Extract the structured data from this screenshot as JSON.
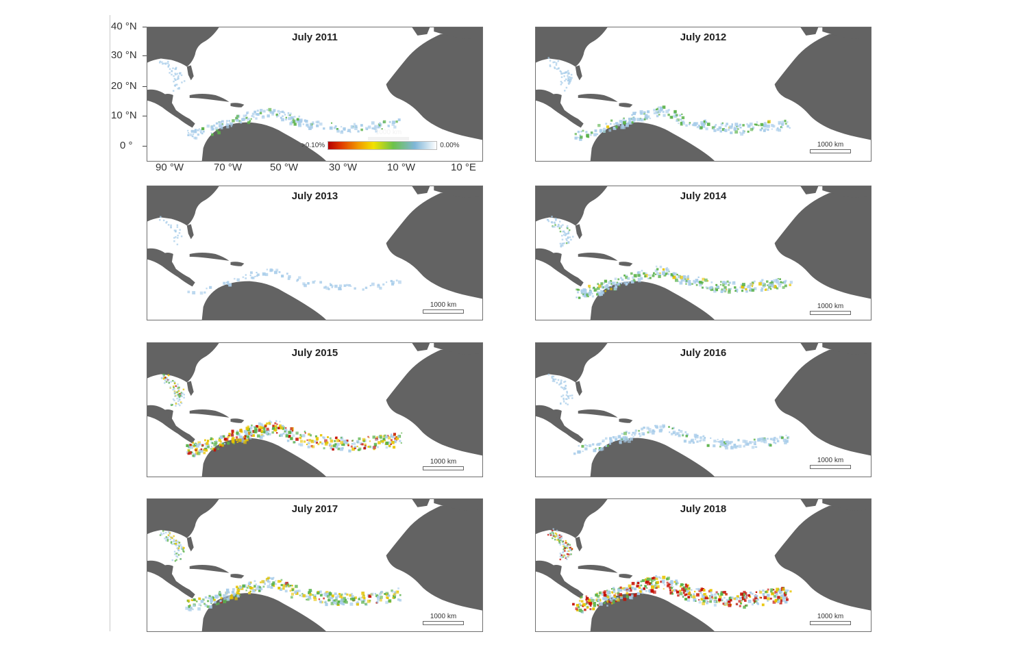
{
  "colors": {
    "land": "#636363",
    "ocean": "#ffffff",
    "high": "#c40d00",
    "mid": "#e8c400",
    "low": "#5bb24a",
    "trace": "#a9cdea"
  },
  "axes": {
    "lat_labels": [
      "40 °N",
      "30 °N",
      "20 °N",
      "10 °N",
      "0 °"
    ],
    "lon_labels": [
      "90 °W",
      "70 °W",
      "50 °W",
      "30 °W",
      "10 °W",
      "10 °E"
    ]
  },
  "legend": {
    "max_label": ">0.10%",
    "min_label": "0.00%"
  },
  "scale_label": "1000 km",
  "panels": [
    {
      "title": "July 2011",
      "intensity": 0.35
    },
    {
      "title": "July 2012",
      "intensity": 0.45
    },
    {
      "title": "July 2013",
      "intensity": 0.05
    },
    {
      "title": "July 2014",
      "intensity": 0.55
    },
    {
      "title": "July 2015",
      "intensity": 0.85
    },
    {
      "title": "July 2016",
      "intensity": 0.35
    },
    {
      "title": "July 2017",
      "intensity": 0.7
    },
    {
      "title": "July 2018",
      "intensity": 1.0
    }
  ]
}
